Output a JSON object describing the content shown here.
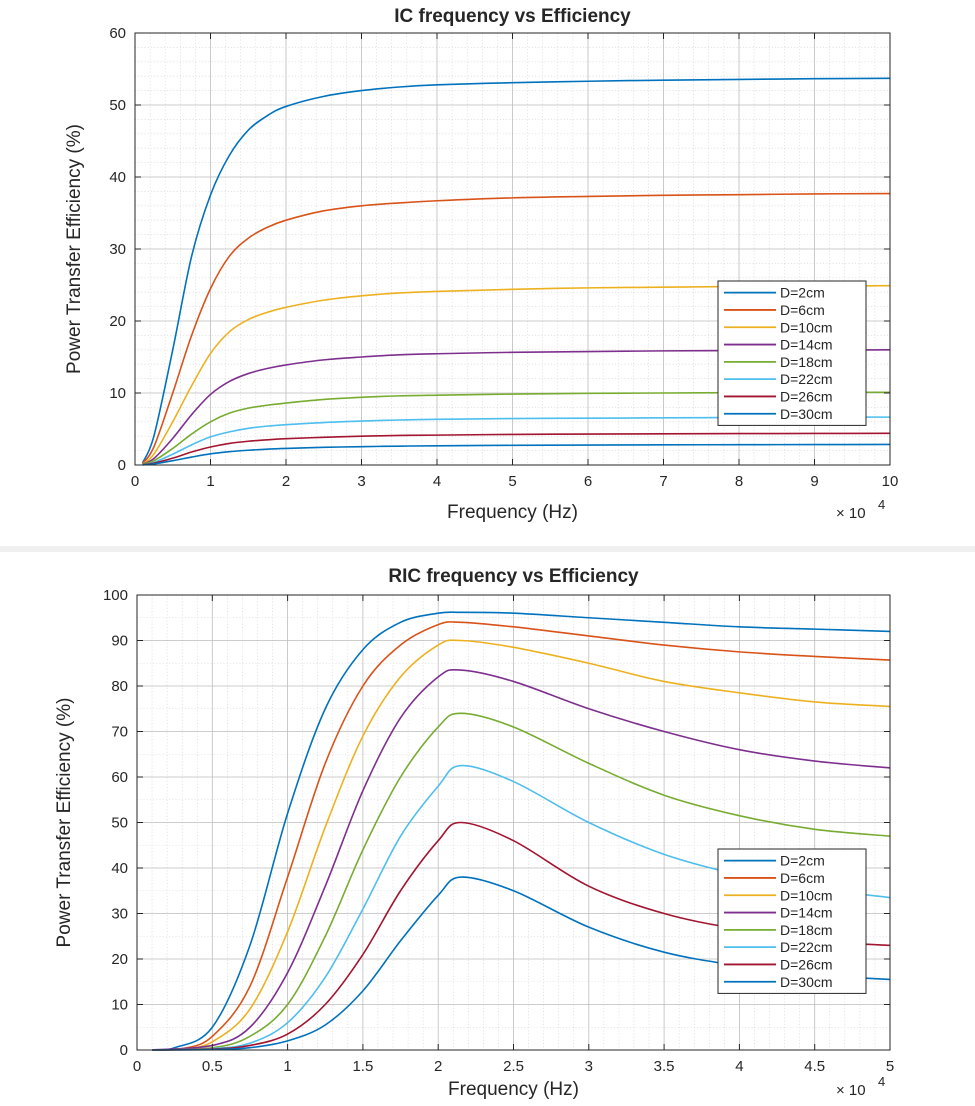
{
  "chart_data": [
    {
      "type": "line",
      "title": "IC frequency vs Efficiency",
      "xlabel": "Frequency (Hz)",
      "ylabel": "Power Transfer Efficiency (%)",
      "x_multiplier_base": "× 10",
      "x_multiplier_exponent": "4",
      "xlim": [
        0,
        10
      ],
      "ylim": [
        0,
        60
      ],
      "xticks": [
        0,
        1,
        2,
        3,
        4,
        5,
        6,
        7,
        8,
        9,
        10
      ],
      "yticks": [
        0,
        10,
        20,
        30,
        40,
        50,
        60
      ],
      "grid": true,
      "minor_grid": true,
      "legend_position": "lower-right",
      "x": [
        0.1,
        0.25,
        0.5,
        0.75,
        1,
        1.25,
        1.5,
        1.75,
        2,
        2.5,
        3,
        3.5,
        4,
        5,
        6,
        7,
        8,
        9,
        10
      ],
      "series": [
        {
          "name": "D=2cm",
          "color": "#0072bd",
          "values": [
            0.3,
            4,
            16,
            29,
            37.5,
            43,
            46.5,
            48.5,
            49.8,
            51.2,
            52,
            52.5,
            52.8,
            53.1,
            53.3,
            53.45,
            53.55,
            53.65,
            53.7
          ]
        },
        {
          "name": "D=6cm",
          "color": "#d95319",
          "values": [
            0.2,
            2.5,
            10,
            18,
            24.5,
            29,
            31.5,
            33,
            34,
            35.3,
            36,
            36.4,
            36.7,
            37.1,
            37.3,
            37.45,
            37.55,
            37.65,
            37.7
          ]
        },
        {
          "name": "D=10cm",
          "color": "#edb120",
          "values": [
            0.1,
            1.5,
            6,
            11,
            15.5,
            18.5,
            20.2,
            21.2,
            21.9,
            22.9,
            23.5,
            23.9,
            24.1,
            24.4,
            24.6,
            24.7,
            24.8,
            24.85,
            24.9
          ]
        },
        {
          "name": "D=14cm",
          "color": "#7e2f8e",
          "values": [
            0.1,
            0.9,
            3.7,
            7,
            9.8,
            11.6,
            12.7,
            13.4,
            13.9,
            14.6,
            15,
            15.3,
            15.45,
            15.65,
            15.75,
            15.85,
            15.9,
            15.95,
            16
          ]
        },
        {
          "name": "D=18cm",
          "color": "#77ac30",
          "values": [
            0.1,
            0.6,
            2.3,
            4.3,
            6,
            7.2,
            7.9,
            8.3,
            8.6,
            9.1,
            9.4,
            9.6,
            9.7,
            9.85,
            9.95,
            10,
            10.05,
            10.1,
            10.1
          ]
        },
        {
          "name": "D=22cm",
          "color": "#4dbeee",
          "values": [
            0.05,
            0.35,
            1.5,
            2.8,
            3.9,
            4.6,
            5.1,
            5.4,
            5.6,
            5.9,
            6.1,
            6.25,
            6.35,
            6.45,
            6.5,
            6.55,
            6.6,
            6.65,
            6.65
          ]
        },
        {
          "name": "D=26cm",
          "color": "#a2142f",
          "values": [
            0.05,
            0.25,
            0.95,
            1.8,
            2.5,
            3,
            3.3,
            3.5,
            3.65,
            3.85,
            4,
            4.1,
            4.15,
            4.25,
            4.3,
            4.33,
            4.36,
            4.38,
            4.4
          ]
        },
        {
          "name": "D=30cm",
          "color": "#0072bd",
          "values": [
            0.02,
            0.15,
            0.6,
            1.1,
            1.55,
            1.85,
            2.05,
            2.2,
            2.3,
            2.45,
            2.55,
            2.62,
            2.67,
            2.73,
            2.77,
            2.8,
            2.82,
            2.84,
            2.85
          ]
        }
      ]
    },
    {
      "type": "line",
      "title": "RIC frequency vs Efficiency",
      "xlabel": "Frequency (Hz)",
      "ylabel": "Power Transfer Efficiency (%)",
      "x_multiplier_base": "× 10",
      "x_multiplier_exponent": "4",
      "xlim": [
        0,
        5
      ],
      "ylim": [
        0,
        100
      ],
      "xticks": [
        0,
        0.5,
        1,
        1.5,
        2,
        2.5,
        3,
        3.5,
        4,
        4.5,
        5
      ],
      "yticks": [
        0,
        10,
        20,
        30,
        40,
        50,
        60,
        70,
        80,
        90,
        100
      ],
      "grid": true,
      "minor_grid": true,
      "legend_position": "lower-right",
      "series": [
        {
          "name": "D=2cm",
          "color": "#0072bd",
          "x": [
            0.1,
            0.25,
            0.5,
            0.75,
            1,
            1.25,
            1.5,
            1.75,
            2,
            2.15,
            2.5,
            3,
            3.5,
            4,
            4.5,
            5
          ],
          "values": [
            0,
            0.5,
            5,
            23,
            52,
            75,
            88,
            94,
            96,
            96.2,
            96,
            95,
            94,
            93,
            92.5,
            92
          ]
        },
        {
          "name": "D=6cm",
          "color": "#d95319",
          "x": [
            0.1,
            0.3,
            0.5,
            0.75,
            1,
            1.25,
            1.5,
            1.75,
            2,
            2.15,
            2.5,
            3,
            3.5,
            4,
            4.5,
            5
          ],
          "values": [
            0,
            0.3,
            3,
            14,
            38,
            63,
            80,
            89,
            93.5,
            94,
            93,
            91,
            89,
            87.5,
            86.5,
            85.7
          ]
        },
        {
          "name": "D=10cm",
          "color": "#edb120",
          "x": [
            0.1,
            0.3,
            0.5,
            0.75,
            1,
            1.25,
            1.5,
            1.75,
            2,
            2.15,
            2.5,
            3,
            3.5,
            4,
            4.5,
            5
          ],
          "values": [
            0,
            0.2,
            1.8,
            9,
            26,
            49,
            69,
            82,
            89,
            90,
            88.5,
            85,
            81,
            78.5,
            76.5,
            75.5
          ]
        },
        {
          "name": "D=14cm",
          "color": "#7e2f8e",
          "x": [
            0.1,
            0.5,
            0.75,
            1,
            1.25,
            1.5,
            1.75,
            2,
            2.15,
            2.5,
            3,
            3.5,
            4,
            4.5,
            5
          ],
          "values": [
            0,
            1,
            5,
            17,
            36,
            57,
            73,
            82,
            83.5,
            81,
            75,
            70,
            66,
            63.5,
            62
          ]
        },
        {
          "name": "D=18cm",
          "color": "#77ac30",
          "x": [
            0.1,
            0.5,
            0.75,
            1,
            1.25,
            1.5,
            1.75,
            2,
            2.15,
            2.5,
            3,
            3.5,
            4,
            4.5,
            5
          ],
          "values": [
            0,
            0.5,
            3,
            10,
            25,
            44,
            60,
            71,
            74,
            71,
            63,
            56,
            51.5,
            48.5,
            47
          ]
        },
        {
          "name": "D=22cm",
          "color": "#4dbeee",
          "x": [
            0.1,
            0.5,
            0.75,
            1,
            1.25,
            1.5,
            1.75,
            2,
            2.15,
            2.5,
            3,
            3.5,
            4,
            4.5,
            5
          ],
          "values": [
            0,
            0.3,
            1.5,
            6,
            16,
            31,
            47,
            58,
            62.5,
            59,
            50,
            43,
            38.5,
            35.5,
            33.5
          ]
        },
        {
          "name": "D=26cm",
          "color": "#a2142f",
          "x": [
            0.1,
            0.5,
            0.75,
            1,
            1.25,
            1.5,
            1.75,
            2,
            2.15,
            2.5,
            3,
            3.5,
            4,
            4.5,
            5
          ],
          "values": [
            0,
            0.2,
            1,
            3.5,
            10,
            21,
            35,
            46,
            50,
            46,
            36,
            30,
            26.5,
            24,
            23
          ]
        },
        {
          "name": "D=30cm",
          "color": "#0072bd",
          "x": [
            0.1,
            0.5,
            0.75,
            1,
            1.25,
            1.5,
            1.75,
            2,
            2.15,
            2.5,
            3,
            3.5,
            4,
            4.5,
            5
          ],
          "values": [
            0,
            0.1,
            0.5,
            2,
            5.5,
            13,
            24,
            34,
            38,
            35,
            27,
            21.5,
            18.5,
            16.5,
            15.5
          ]
        }
      ]
    }
  ]
}
